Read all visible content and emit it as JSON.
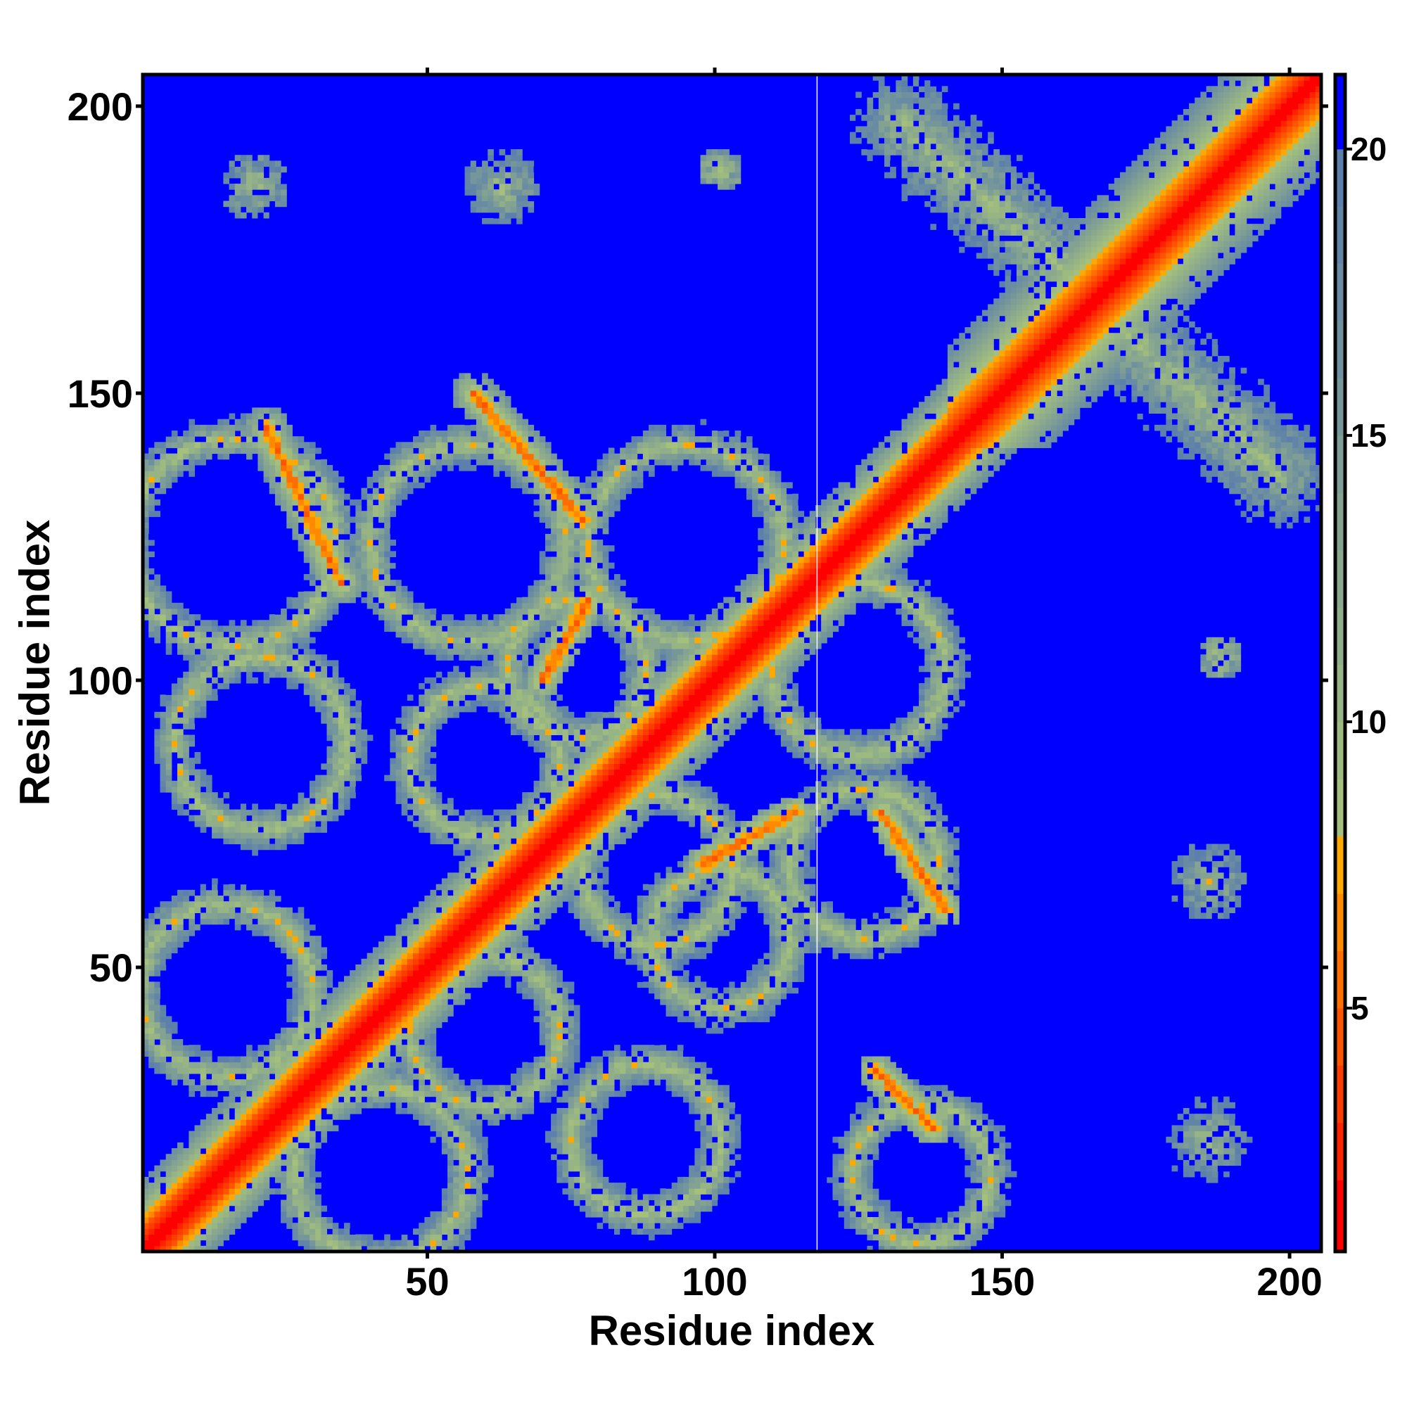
{
  "chart_data": {
    "type": "heatmap",
    "title": "",
    "xlabel": "Residue index",
    "ylabel": "Residue index",
    "n_residues": 205,
    "xlim": [
      0.5,
      205.5
    ],
    "ylim": [
      0.5,
      205.5
    ],
    "xticks": [
      50,
      100,
      150,
      200
    ],
    "yticks": [
      50,
      100,
      150,
      200
    ],
    "colorbar": {
      "range": [
        0.75,
        21.3
      ],
      "ticks": [
        5,
        10,
        15,
        20
      ],
      "levels": [
        {
          "max": 2,
          "color": "#ff0000"
        },
        {
          "max": 3,
          "color": "#ff2200"
        },
        {
          "max": 4,
          "color": "#ff3c00"
        },
        {
          "max": 5,
          "color": "#ff5500"
        },
        {
          "max": 6,
          "color": "#ff6e00"
        },
        {
          "max": 7,
          "color": "#ff8a00"
        },
        {
          "max": 8,
          "color": "#ffa800"
        },
        {
          "max": 20,
          "color_from": "#a4c07c",
          "color_to": "#5579b0"
        },
        {
          "max": 99,
          "color": "#0000ff"
        }
      ]
    },
    "description_units": "distance",
    "features": {
      "diagonal": {
        "start": 1,
        "end": 205,
        "core_width": 2.5,
        "band_width": 9
      },
      "rings": [
        {
          "cx": 16,
          "cy": 124,
          "r": 15
        },
        {
          "cx": 57,
          "cy": 124,
          "r": 14
        },
        {
          "cx": 95,
          "cy": 124,
          "r": 14
        },
        {
          "cx": 76,
          "cy": 102,
          "r": 9
        },
        {
          "cx": 125,
          "cy": 102,
          "r": 12
        },
        {
          "cx": 60,
          "cy": 86,
          "r": 10
        },
        {
          "cx": 21,
          "cy": 89,
          "r": 12
        },
        {
          "cx": 126,
          "cy": 68,
          "r": 10
        },
        {
          "cx": 90,
          "cy": 67,
          "r": 10
        },
        {
          "cx": 60,
          "cy": 39,
          "r": 10
        },
        {
          "cx": 101,
          "cy": 55,
          "r": 9
        },
        {
          "cx": 15,
          "cy": 46,
          "r": 12
        },
        {
          "cx": 42,
          "cy": 14,
          "r": 12
        },
        {
          "cx": 88,
          "cy": 20,
          "r": 10
        },
        {
          "cx": 136,
          "cy": 14,
          "r": 9
        }
      ],
      "stripes": [
        {
          "x1": 22,
          "y1": 144,
          "x2": 35,
          "y2": 117,
          "w": 4
        },
        {
          "x1": 58,
          "y1": 150,
          "x2": 77,
          "y2": 128,
          "w": 4
        },
        {
          "x1": 133,
          "y1": 197,
          "x2": 198,
          "y2": 136,
          "w": 10
        },
        {
          "x1": 70,
          "y1": 100,
          "x2": 78,
          "y2": 114,
          "w": 3
        },
        {
          "x1": 98,
          "y1": 68,
          "x2": 114,
          "y2": 77,
          "w": 3
        },
        {
          "x1": 129,
          "y1": 77,
          "x2": 140,
          "y2": 60,
          "w": 3
        },
        {
          "x1": 128,
          "y1": 32,
          "x2": 138,
          "y2": 22,
          "w": 3
        }
      ],
      "blobs": [
        {
          "cx": 20,
          "cy": 186,
          "r": 6
        },
        {
          "cx": 63,
          "cy": 186,
          "r": 7
        },
        {
          "cx": 101,
          "cy": 189,
          "r": 4
        },
        {
          "cx": 186,
          "cy": 20,
          "r": 8
        },
        {
          "cx": 186,
          "cy": 65,
          "r": 7
        },
        {
          "cx": 188,
          "cy": 104,
          "r": 4
        }
      ],
      "gap_column": 117.8
    }
  }
}
